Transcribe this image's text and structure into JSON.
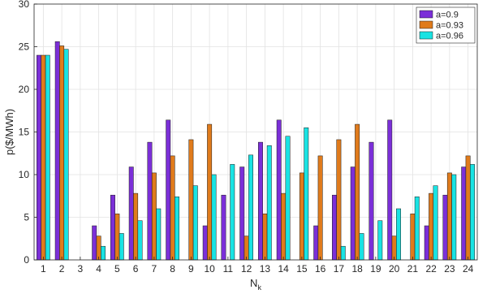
{
  "chart_data": {
    "type": "bar",
    "xlabel": "N",
    "xlabel_subscript": "k",
    "ylabel": "p($/MWh)",
    "ylim": [
      0,
      30
    ],
    "yticks": [
      0,
      5,
      10,
      15,
      20,
      25,
      30
    ],
    "categories": [
      "1",
      "2",
      "3",
      "4",
      "5",
      "6",
      "7",
      "8",
      "9",
      "10",
      "11",
      "12",
      "13",
      "14",
      "15",
      "16",
      "17",
      "18",
      "19",
      "20",
      "21",
      "22",
      "23",
      "24"
    ],
    "grid": true,
    "legend_position": "top-right",
    "series": [
      {
        "name": "a=0.9",
        "color": "#7b2fd8",
        "values": [
          24.0,
          25.6,
          0,
          4.0,
          7.6,
          10.9,
          13.8,
          16.4,
          0,
          4.0,
          7.6,
          10.9,
          13.8,
          16.4,
          0,
          4.0,
          7.6,
          10.9,
          13.8,
          16.4,
          0,
          4.0,
          7.6,
          10.9
        ]
      },
      {
        "name": "a=0.93",
        "color": "#e07b1c",
        "values": [
          24.0,
          25.1,
          0,
          2.8,
          5.4,
          7.8,
          10.2,
          12.2,
          14.1,
          15.9,
          0,
          2.8,
          5.4,
          7.8,
          10.2,
          12.2,
          14.1,
          15.9,
          0,
          2.8,
          5.4,
          7.8,
          10.2,
          12.2
        ]
      },
      {
        "name": "a=0.96",
        "color": "#19e3e3",
        "values": [
          24.0,
          24.7,
          0,
          1.6,
          3.1,
          4.6,
          6.0,
          7.4,
          8.7,
          10.0,
          11.2,
          12.3,
          13.4,
          14.5,
          15.5,
          0,
          1.6,
          3.1,
          4.6,
          6.0,
          7.4,
          8.7,
          10.0,
          11.2
        ]
      }
    ]
  }
}
